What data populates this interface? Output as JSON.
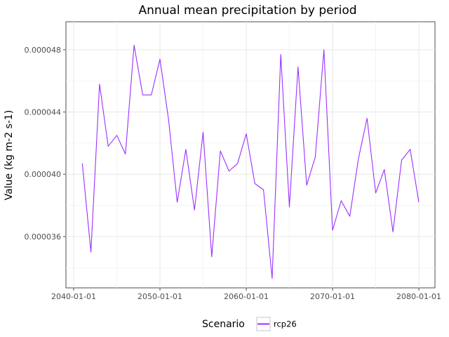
{
  "chart_data": {
    "type": "line",
    "title": "Annual mean precipitation by period",
    "xlabel": "",
    "ylabel": "Value (kg m-2 s-1)",
    "x_ticks": [
      "2040-01-01",
      "2050-01-01",
      "2060-01-01",
      "2070-01-01",
      "2080-01-01"
    ],
    "y_ticks": [
      "0.000036",
      "0.000040",
      "0.000044",
      "0.000048"
    ],
    "x_range": [
      "2040-01-01",
      "2080-01-01"
    ],
    "ylim": [
      3.27e-05,
      4.98e-05
    ],
    "grid": true,
    "legend": {
      "title": "Scenario",
      "position": "bottom"
    },
    "series": [
      {
        "name": "rcp26",
        "color": "#9b30ff",
        "x": [
          "2041",
          "2042",
          "2043",
          "2044",
          "2045",
          "2046",
          "2047",
          "2048",
          "2049",
          "2050",
          "2051",
          "2052",
          "2053",
          "2054",
          "2055",
          "2056",
          "2057",
          "2058",
          "2059",
          "2060",
          "2061",
          "2062",
          "2063",
          "2064",
          "2065",
          "2066",
          "2067",
          "2068",
          "2069",
          "2070",
          "2071",
          "2072",
          "2073",
          "2074",
          "2075",
          "2076",
          "2077",
          "2078",
          "2079",
          "2080"
        ],
        "values": [
          4.07e-05,
          3.5e-05,
          4.58e-05,
          4.18e-05,
          4.25e-05,
          4.13e-05,
          4.83e-05,
          4.51e-05,
          4.51e-05,
          4.74e-05,
          4.35e-05,
          3.82e-05,
          4.16e-05,
          3.77e-05,
          4.27e-05,
          3.47e-05,
          4.15e-05,
          4.02e-05,
          4.07e-05,
          4.26e-05,
          3.94e-05,
          3.9e-05,
          3.33e-05,
          4.77e-05,
          3.79e-05,
          4.69e-05,
          3.93e-05,
          4.11e-05,
          4.8e-05,
          3.64e-05,
          3.83e-05,
          3.73e-05,
          4.1e-05,
          4.36e-05,
          3.88e-05,
          4.03e-05,
          3.63e-05,
          4.09e-05,
          4.16e-05,
          3.82e-05
        ]
      }
    ]
  }
}
